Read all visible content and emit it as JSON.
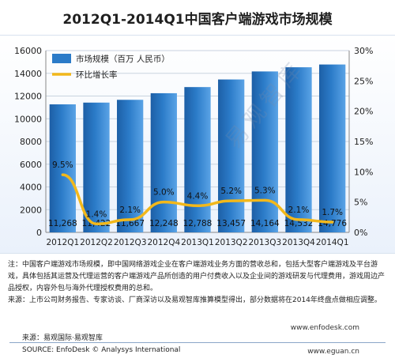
{
  "chart_data": {
    "type": "bar",
    "title": "2012Q1-2014Q1中国客户端游戏市场规模",
    "categories": [
      "2012Q1",
      "2012Q2",
      "2012Q3",
      "2012Q4",
      "2013Q1",
      "2013Q2",
      "2013Q3",
      "2013Q4",
      "2014Q1"
    ],
    "series": [
      {
        "name": "市场规模（百万 人民币）",
        "type": "bar",
        "axis": "left",
        "values": [
          11268,
          11422,
          11667,
          12248,
          12788,
          13457,
          14164,
          14532,
          14776
        ],
        "labels": [
          "11,268",
          "11,422",
          "11,667",
          "12,248",
          "12,788",
          "13,457",
          "14,164",
          "14,532",
          "14,776"
        ]
      },
      {
        "name": "环比增长率",
        "type": "line",
        "axis": "right",
        "values": [
          9.5,
          1.4,
          2.1,
          5.0,
          4.4,
          5.2,
          5.3,
          2.1,
          1.7
        ],
        "labels": [
          "9.5%",
          "1.4%",
          "2.1%",
          "5.0%",
          "4.4%",
          "5.2%",
          "5.3%",
          "2.1%",
          "1.7%"
        ]
      }
    ],
    "ylim_left": [
      0,
      16000
    ],
    "yticks_left": [
      "0",
      "2000",
      "4000",
      "6000",
      "8000",
      "10000",
      "12000",
      "14000",
      "16000"
    ],
    "ylim_right": [
      0,
      30
    ],
    "yticks_right": [
      "0%",
      "5%",
      "10%",
      "15%",
      "20%",
      "25%",
      "30%"
    ],
    "legend_placement": "top-left",
    "grid": true,
    "colors": {
      "bar": "#2b7bc8",
      "line": "#f2b81b"
    }
  },
  "watermark": "易观智库",
  "notes": [
    "注：中国客户端游戏市场规模，即中国网络游戏企业在客户端游戏业务方面的营收总和，包括大型客户端游戏及平台游戏，具体包括其运营及代理运营的客户端游戏产品所创造的用户付费收入以及企业间的游戏研发与代理费用，游戏周边产品授权，内容外包与海外代理授权费用的总和。",
    "来源：上市公司财务报告、专家访谈、厂商深访以及易观智库推算模型得出，部分数据将在2014年终盘点做相应调整。"
  ],
  "footer": {
    "site1": "www.enfodesk.com",
    "source_cn": "来源：易观国际·易观智库",
    "source_en": "SOURCE: EnfoDesk © Analysys International",
    "site2": "www.eguan.cn"
  }
}
